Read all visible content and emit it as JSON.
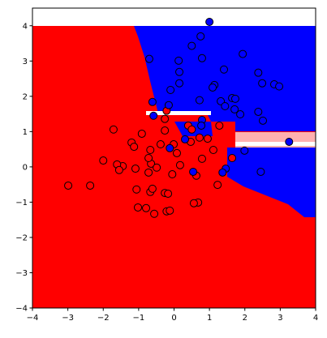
{
  "chart_data": {
    "type": "scatter",
    "xlim": [
      -4,
      4
    ],
    "ylim": [
      -4,
      4.5
    ],
    "xticks": [
      {
        "value": -4,
        "label": "−4"
      },
      {
        "value": -3,
        "label": "−3"
      },
      {
        "value": -2,
        "label": "−2"
      },
      {
        "value": -1,
        "label": "−1"
      },
      0,
      1,
      2,
      3,
      4
    ],
    "yticks": [
      {
        "value": -4,
        "label": "−4"
      },
      {
        "value": -3,
        "label": "−3"
      },
      {
        "value": -2,
        "label": "−2"
      },
      {
        "value": -1,
        "label": "−1"
      },
      0,
      1,
      2,
      3,
      4
    ],
    "series": [
      {
        "color": "#ff0000",
        "x": [
          -1.71,
          -1.2,
          -1.13,
          -0.91,
          -0.65,
          -0.72,
          -0.67,
          -0.72,
          -1.09,
          -1.45,
          -2.0,
          -1.61,
          -2.37,
          -0.49,
          -0.38,
          -0.26,
          -0.26,
          -0.21,
          -0.26,
          -0.05,
          -0.01,
          0.17,
          0.08,
          0.4,
          0.5,
          0.47,
          0.63,
          0.68,
          0.79,
          0.72,
          0.95,
          1.11,
          1.28,
          1.23,
          1.64,
          -1.02,
          -1.06,
          -0.67,
          -0.61,
          -0.79,
          -0.56,
          -0.21,
          -0.12,
          -2.99,
          -0.17,
          0.56,
          -1.55
        ],
        "y": [
          1.06,
          0.69,
          0.57,
          0.94,
          0.09,
          0.25,
          0.48,
          -0.16,
          -0.05,
          0.02,
          0.18,
          0.07,
          -0.53,
          -0.02,
          0.64,
          1.03,
          1.36,
          1.59,
          -0.74,
          -0.21,
          0.64,
          0.05,
          0.39,
          1.17,
          1.06,
          0.71,
          -0.25,
          -1.01,
          0.23,
          0.83,
          0.8,
          0.48,
          1.17,
          -0.51,
          0.25,
          -1.15,
          -0.64,
          -0.71,
          -0.62,
          -1.17,
          -1.33,
          -1.26,
          -1.24,
          -0.53,
          -0.76,
          -1.03,
          -0.09
        ]
      },
      {
        "color": "#0000ff",
        "x": [
          1.0,
          -0.7,
          0.75,
          0.5,
          0.13,
          1.41,
          1.94,
          0.79,
          0.15,
          -0.1,
          -0.61,
          0.15,
          -0.15,
          -0.58,
          1.14,
          1.09,
          1.32,
          1.44,
          1.64,
          1.87,
          1.71,
          1.73,
          2.38,
          2.49,
          2.83,
          2.97,
          2.38,
          2.51,
          0.79,
          0.77,
          1.99,
          2.45,
          3.25,
          -0.12,
          0.31,
          1.46,
          0.54,
          1.37,
          0.72
        ],
        "y": [
          4.11,
          3.06,
          3.7,
          3.43,
          3.01,
          2.76,
          3.2,
          3.08,
          2.69,
          2.18,
          1.84,
          2.37,
          1.75,
          1.45,
          2.32,
          2.25,
          1.86,
          1.72,
          1.95,
          1.49,
          1.63,
          1.93,
          2.67,
          2.37,
          2.34,
          2.28,
          1.56,
          1.31,
          1.33,
          1.17,
          0.46,
          -0.14,
          0.71,
          0.53,
          0.78,
          -0.05,
          -0.14,
          -0.16,
          1.89
        ]
      }
    ]
  }
}
